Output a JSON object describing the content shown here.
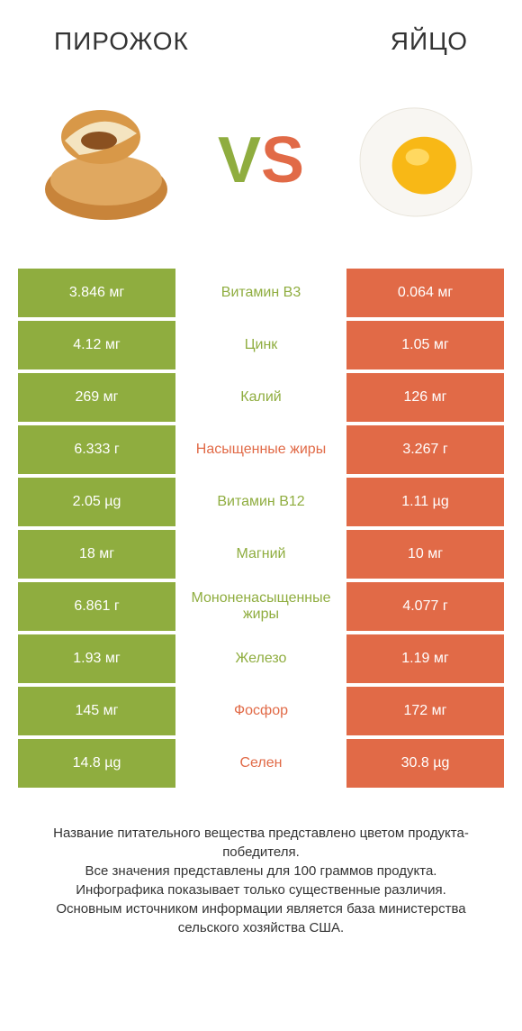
{
  "colors": {
    "green": "#8fad3f",
    "orange": "#e16a47",
    "text": "#333333",
    "white": "#ffffff"
  },
  "header": {
    "left": "ПИРОЖОК",
    "right": "ЯЙЦО"
  },
  "vs": {
    "v": "V",
    "s": "S"
  },
  "rows": [
    {
      "left": "3.846 мг",
      "mid": "Витамин B3",
      "right": "0.064 мг",
      "winner": "left"
    },
    {
      "left": "4.12 мг",
      "mid": "Цинк",
      "right": "1.05 мг",
      "winner": "left"
    },
    {
      "left": "269 мг",
      "mid": "Калий",
      "right": "126 мг",
      "winner": "left"
    },
    {
      "left": "6.333 г",
      "mid": "Насыщенные жиры",
      "right": "3.267 г",
      "winner": "right"
    },
    {
      "left": "2.05 µg",
      "mid": "Витамин B12",
      "right": "1.11 µg",
      "winner": "left"
    },
    {
      "left": "18 мг",
      "mid": "Магний",
      "right": "10 мг",
      "winner": "left"
    },
    {
      "left": "6.861 г",
      "mid": "Мононенасыщенные жиры",
      "right": "4.077 г",
      "winner": "left"
    },
    {
      "left": "1.93 мг",
      "mid": "Железо",
      "right": "1.19 мг",
      "winner": "left"
    },
    {
      "left": "145 мг",
      "mid": "Фосфор",
      "right": "172 мг",
      "winner": "right"
    },
    {
      "left": "14.8 µg",
      "mid": "Селен",
      "right": "30.8 µg",
      "winner": "right"
    }
  ],
  "footer": {
    "line1": "Название питательного вещества представлено цветом продукта-победителя.",
    "line2": "Все значения представлены для 100 граммов продукта.",
    "line3": "Инфографика показывает только существенные различия.",
    "line4": "Основным источником информации является база министерства сельского хозяйства США."
  }
}
